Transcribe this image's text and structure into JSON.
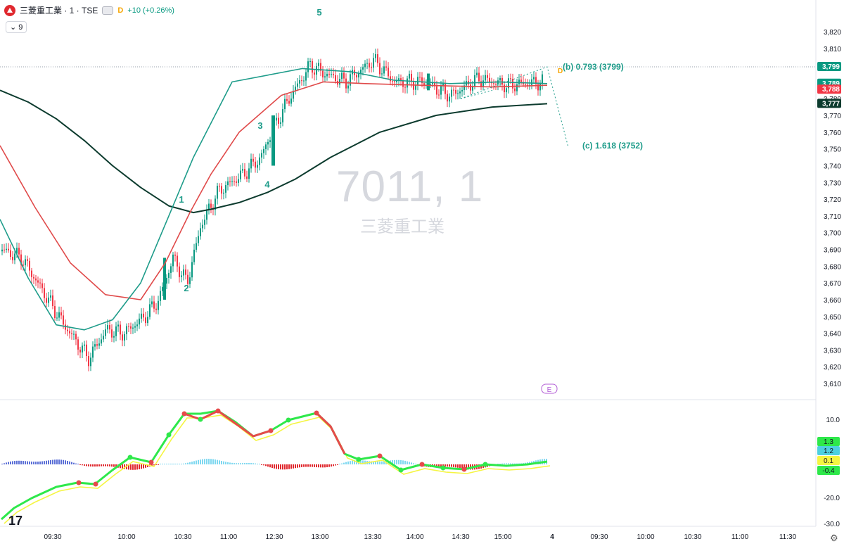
{
  "header": {
    "title": "三菱重工業 · 1 · TSE",
    "flag": "D",
    "change": "+10 (+0.26%)",
    "indicator_count": "9"
  },
  "watermark": {
    "symbol": "7011, 1",
    "name": "三菱重工業"
  },
  "chart_data": {
    "type": "line",
    "title": "三菱重工業 · 1 · TSE",
    "price_axis_ticks": [
      3820,
      3810,
      3800,
      3790,
      3780,
      3770,
      3760,
      3750,
      3740,
      3730,
      3720,
      3710,
      3700,
      3690,
      3680,
      3670,
      3660,
      3650,
      3640,
      3630,
      3620,
      3610
    ],
    "ylim": [
      3605,
      3823
    ],
    "time_axis_labels": [
      "09:30",
      "10:00",
      "10:30",
      "11:00",
      "12:30",
      "13:00",
      "13:30",
      "14:00",
      "14:30",
      "15:00",
      "4",
      "09:30",
      "10:00",
      "10:30",
      "11:00",
      "11:30"
    ],
    "price_tags": [
      {
        "value": "3,799",
        "color": "#089981"
      },
      {
        "value": "3,789",
        "color": "#089981"
      },
      {
        "value": "3,788",
        "color": "#f23645"
      },
      {
        "value": "3,777",
        "color": "#0c3b2e"
      }
    ],
    "series": [
      {
        "name": "",
        "color": "#0c3b2e",
        "values": [
          3785,
          3778,
          3768,
          3755,
          3740,
          3727,
          3716,
          3712,
          3714,
          3718,
          3724,
          3732,
          3745,
          3760,
          3770,
          3775,
          3777
        ]
      },
      {
        "name": "",
        "color": "#e04a4a",
        "values": [
          3752,
          3715,
          3682,
          3663,
          3660,
          3682,
          3712,
          3735,
          3760,
          3782,
          3790,
          3789,
          3788,
          3787,
          3788
        ]
      },
      {
        "name": "",
        "color": "#1e9c8a",
        "values": [
          3708,
          3673,
          3645,
          3642,
          3648,
          3670,
          3710,
          3745,
          3790,
          3798,
          3796,
          3791,
          3789,
          3790,
          3789
        ]
      }
    ],
    "wave_labels": [
      {
        "label": "1",
        "x": "10:30",
        "y": 3718
      },
      {
        "label": "2",
        "x": "10:33",
        "y": 3665
      },
      {
        "label": "3",
        "x": "12:25",
        "y": 3770
      },
      {
        "label": "4",
        "x": "12:35",
        "y": 3725
      },
      {
        "label": "5",
        "x": "12:55",
        "y": 3817
      }
    ],
    "annotations": [
      "(b) 0.793 (3799)",
      "(c) 1.618 (3752)",
      "D",
      "E"
    ],
    "oscillator": {
      "ticks": [
        "10.0",
        "-20.0",
        "-30.0"
      ],
      "value_tags": [
        {
          "value": "1.3",
          "color": "#2ee84a"
        },
        {
          "value": "1.2",
          "color": "#4dd0e1"
        },
        {
          "value": "0.1",
          "color": "#f5f542"
        },
        {
          "value": "-0.4",
          "color": "#2ee84a"
        }
      ]
    }
  },
  "colors": {
    "up": "#089981",
    "down": "#f23645",
    "ema200": "#0c3b2e",
    "ema_mid": "#e04a4a",
    "ema_fast": "#1e9c8a"
  },
  "icons": {
    "tv_logo": "tradingview-logo-icon",
    "settings": "gear-icon"
  },
  "tv_logo_text": "17"
}
